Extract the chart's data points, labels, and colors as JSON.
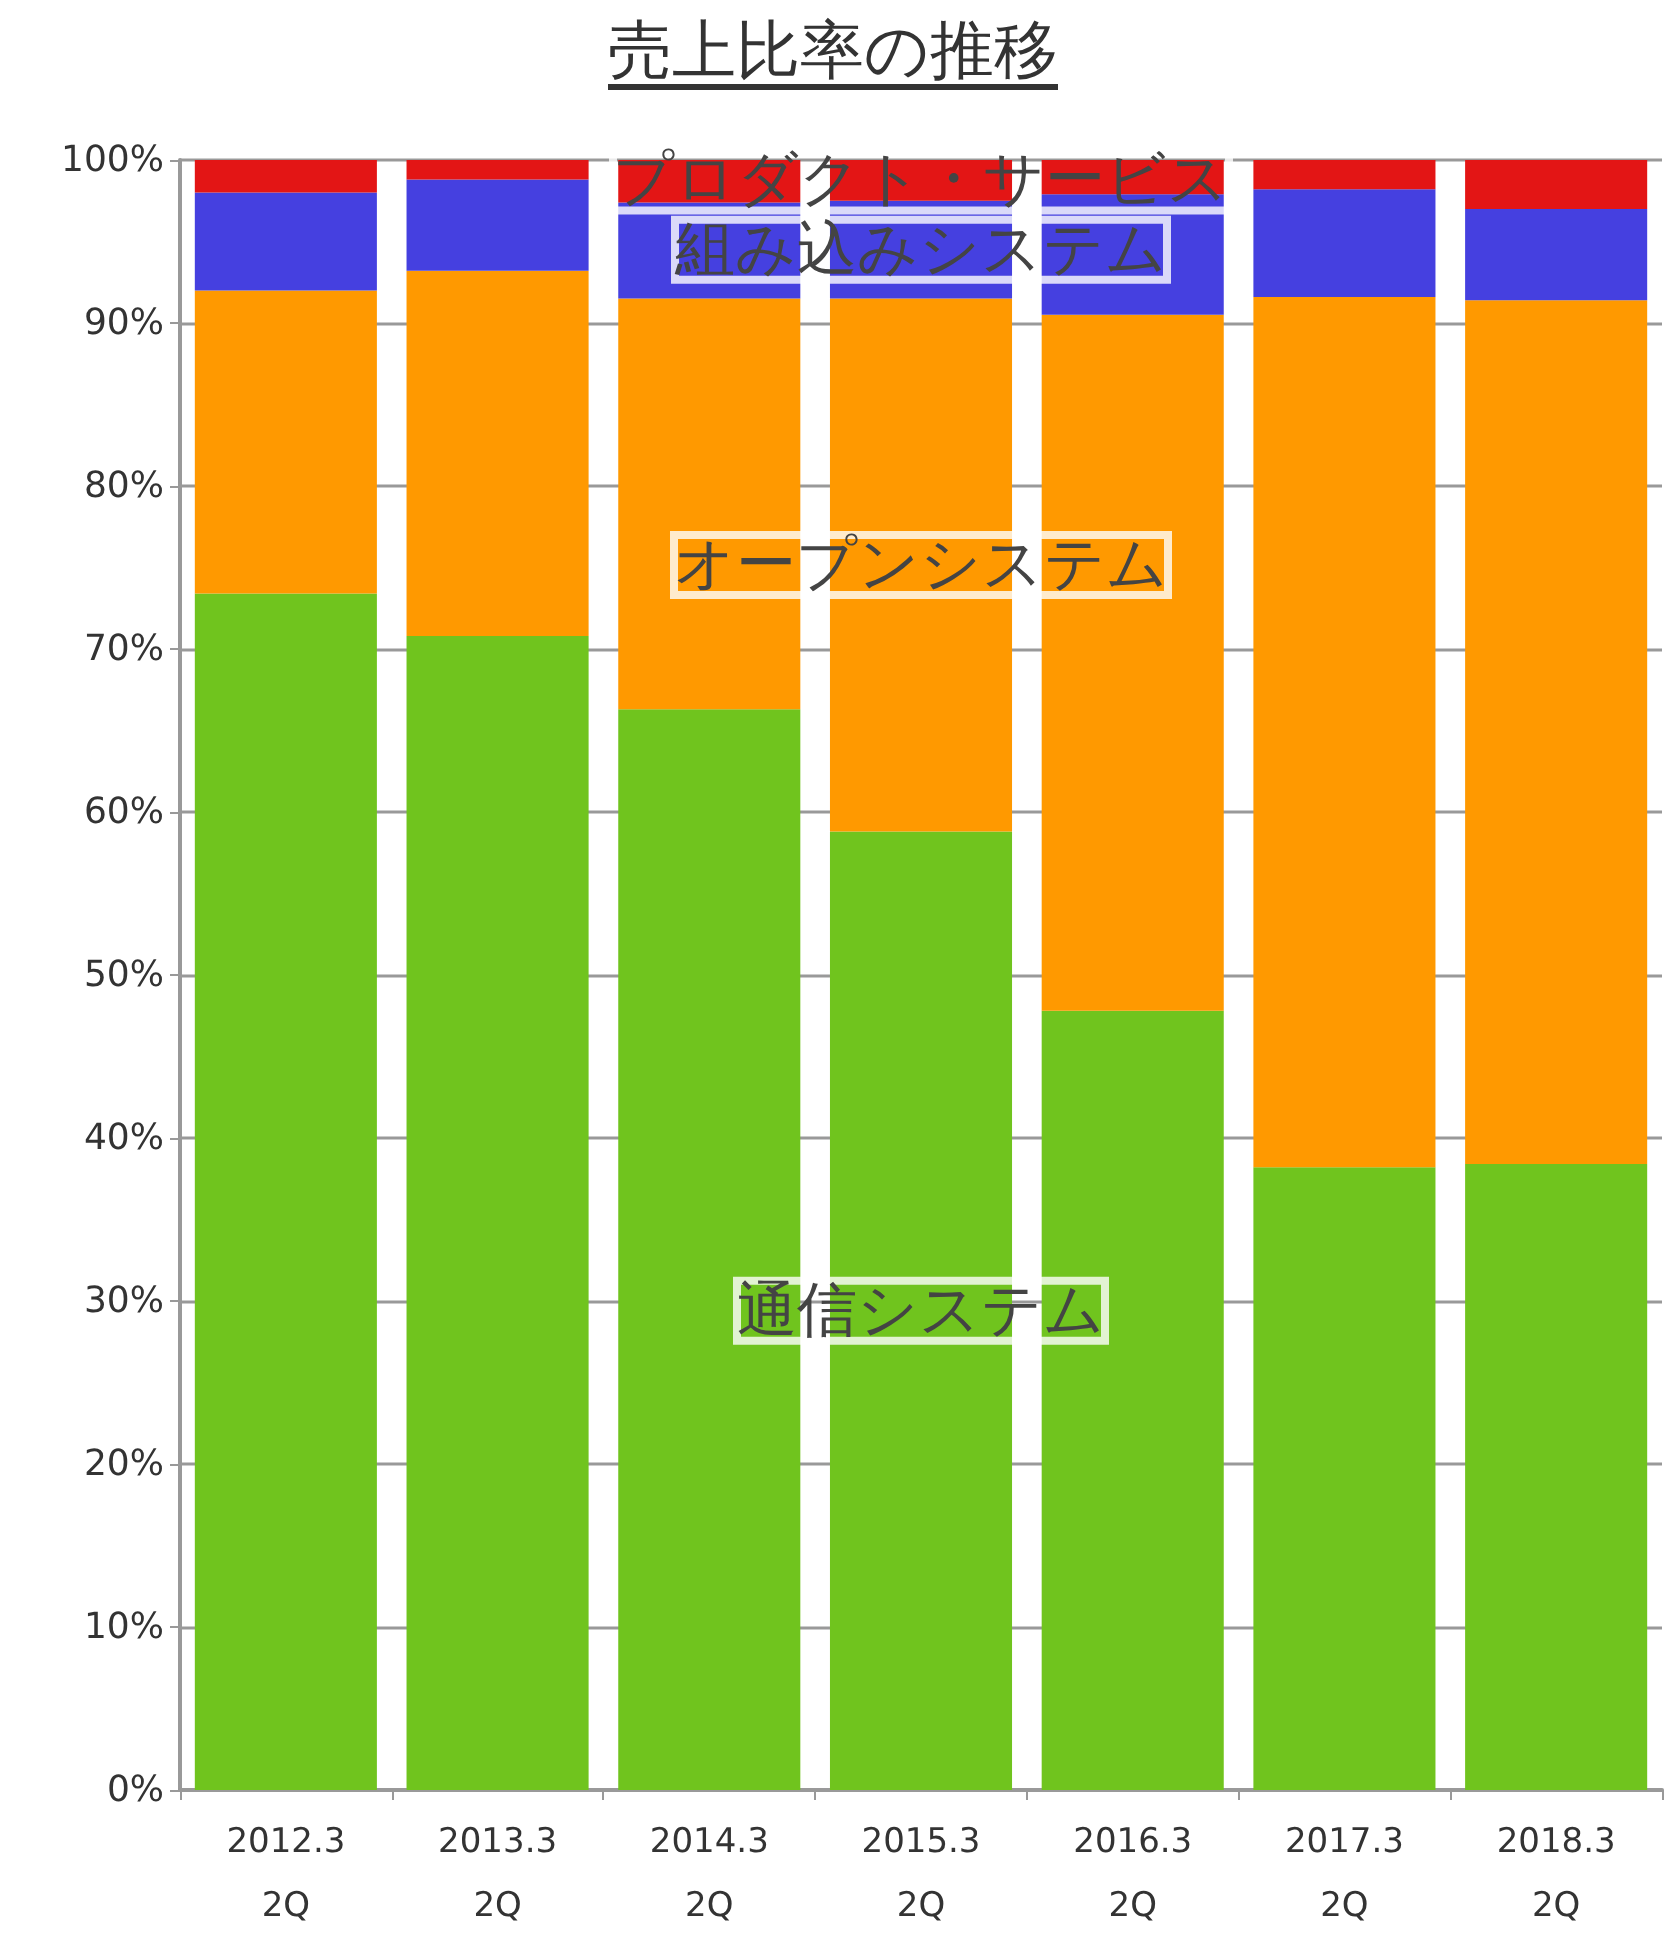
{
  "chart_data": {
    "type": "bar",
    "title": "売上比率の推移",
    "stacked": true,
    "legend": false,
    "grid": "y",
    "categories": [
      "2012.3\n2Q",
      "2013.3\n2Q",
      "2014.3\n2Q",
      "2015.3\n2Q",
      "2016.3\n2Q",
      "2017.3\n2Q",
      "2018.3\n2Q"
    ],
    "series": [
      {
        "name": "通信システム",
        "color": "#70c41e",
        "values": [
          73.4,
          70.8,
          66.3,
          58.8,
          47.8,
          38.2,
          38.4
        ]
      },
      {
        "name": "オープンシステム",
        "color": "#ff9900",
        "values": [
          18.6,
          22.4,
          25.2,
          32.7,
          42.7,
          53.4,
          53.0
        ]
      },
      {
        "name": "組み込みシステム",
        "color": "#4540e0",
        "values": [
          6.0,
          5.6,
          5.9,
          6.0,
          7.4,
          6.6,
          5.6
        ]
      },
      {
        "name": "プロダクト・サービス",
        "color": "#e31515",
        "values": [
          2.0,
          1.2,
          2.6,
          2.5,
          2.1,
          1.8,
          3.0
        ]
      }
    ],
    "ylim": [
      0,
      100
    ],
    "yticks": [
      {
        "value": 0,
        "label": "0%"
      },
      {
        "value": 10,
        "label": "10%"
      },
      {
        "value": 20,
        "label": "20%"
      },
      {
        "value": 30,
        "label": "30%"
      },
      {
        "value": 40,
        "label": "40%"
      },
      {
        "value": 50,
        "label": "50%"
      },
      {
        "value": 60,
        "label": "60%"
      },
      {
        "value": 70,
        "label": "70%"
      },
      {
        "value": 80,
        "label": "80%"
      },
      {
        "value": 90,
        "label": "90%"
      },
      {
        "value": 100,
        "label": "100%"
      }
    ]
  }
}
